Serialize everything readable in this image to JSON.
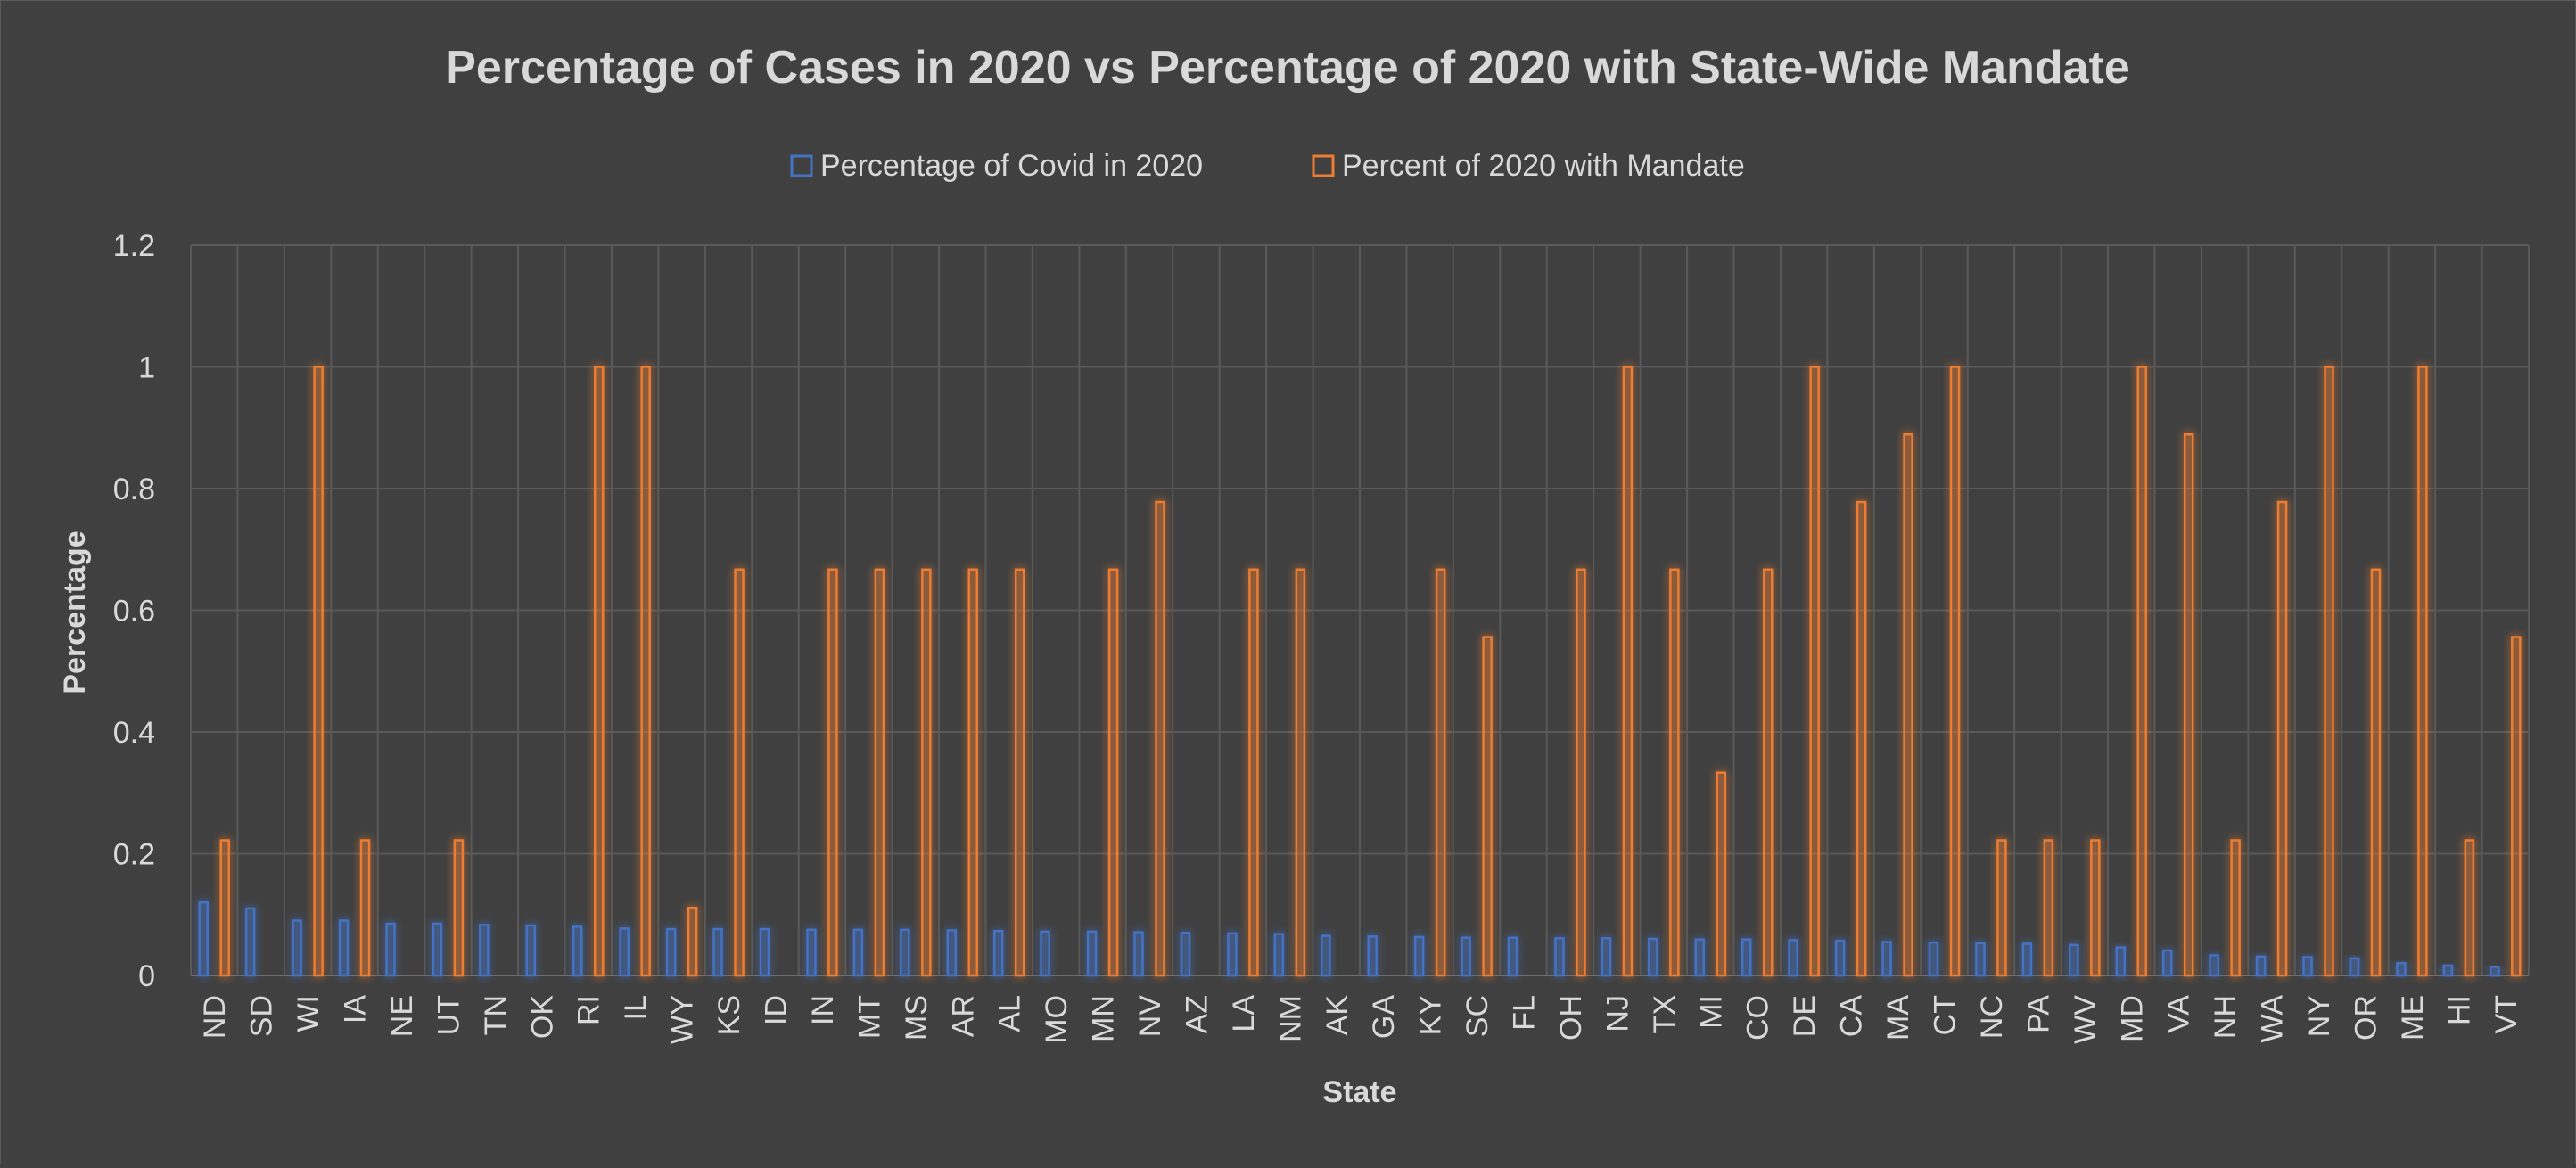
{
  "chart_data": {
    "type": "bar",
    "title": "Percentage of Cases in 2020 vs Percentage of 2020 with State-Wide Mandate",
    "xlabel": "State",
    "ylabel": "Percentage",
    "ylim": [
      0,
      1.2
    ],
    "yticks": [
      "0",
      "0.2",
      "0.4",
      "0.6",
      "0.8",
      "1",
      "1.2"
    ],
    "grid": true,
    "legend_position": "top",
    "categories": [
      "ND",
      "SD",
      "WI",
      "IA",
      "NE",
      "UT",
      "TN",
      "OK",
      "RI",
      "IL",
      "WY",
      "KS",
      "ID",
      "IN",
      "MT",
      "MS",
      "AR",
      "AL",
      "MO",
      "MN",
      "NV",
      "AZ",
      "LA",
      "NM",
      "AK",
      "GA",
      "KY",
      "SC",
      "FL",
      "OH",
      "NJ",
      "TX",
      "MI",
      "CO",
      "DE",
      "CA",
      "MA",
      "CT",
      "NC",
      "PA",
      "WV",
      "MD",
      "VA",
      "NH",
      "WA",
      "NY",
      "OR",
      "ME",
      "HI",
      "VT"
    ],
    "series": [
      {
        "name": "Percentage of Covid in 2020",
        "color": "#4472C4",
        "values": [
          0.12,
          0.11,
          0.09,
          0.09,
          0.085,
          0.085,
          0.083,
          0.082,
          0.08,
          0.077,
          0.076,
          0.076,
          0.076,
          0.075,
          0.075,
          0.075,
          0.074,
          0.073,
          0.072,
          0.072,
          0.071,
          0.07,
          0.069,
          0.068,
          0.065,
          0.064,
          0.063,
          0.062,
          0.062,
          0.061,
          0.061,
          0.06,
          0.059,
          0.059,
          0.058,
          0.057,
          0.055,
          0.054,
          0.053,
          0.052,
          0.05,
          0.046,
          0.041,
          0.033,
          0.031,
          0.03,
          0.028,
          0.02,
          0.016,
          0.014
        ]
      },
      {
        "name": "Percent of 2020 with Mandate",
        "color": "#ED7D31",
        "values": [
          0.222,
          0,
          1,
          0.222,
          0,
          0.222,
          0,
          0,
          1,
          1,
          0.111,
          0.667,
          0,
          0.667,
          0.667,
          0.667,
          0.667,
          0.667,
          0,
          0.667,
          0.778,
          0,
          0.667,
          0.667,
          0,
          0,
          0.667,
          0.556,
          0,
          0.667,
          1,
          0.667,
          0.333,
          0.667,
          1,
          0.778,
          0.889,
          1,
          0.222,
          0.222,
          0.222,
          1,
          0.889,
          0.222,
          0.778,
          1,
          0.667,
          1,
          0.222,
          0.556
        ]
      }
    ]
  }
}
